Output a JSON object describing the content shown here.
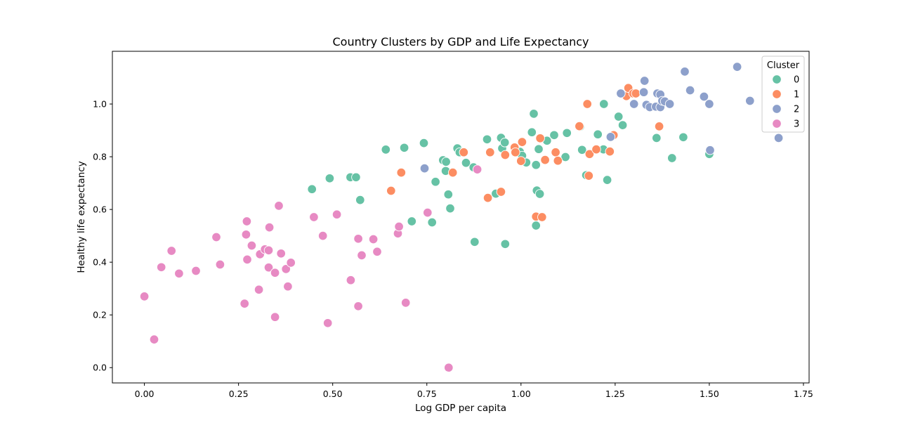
{
  "chart_data": {
    "type": "scatter",
    "title": "Country Clusters by GDP and Life Expectancy",
    "xlabel": "Log GDP per capita",
    "ylabel": "Healthy life expectancy",
    "xlim": [
      -0.085,
      1.765
    ],
    "ylim": [
      -0.058,
      1.2
    ],
    "xticks": [
      "0.00",
      "0.25",
      "0.50",
      "0.75",
      "1.00",
      "1.25",
      "1.50",
      "1.75"
    ],
    "yticks": [
      "0.0",
      "0.2",
      "0.4",
      "0.6",
      "0.8",
      "1.0"
    ],
    "grid": false,
    "legend": {
      "title": "Cluster",
      "placement": "top-right"
    },
    "series": [
      {
        "name": "0",
        "color": "#66c2a5",
        "points": [
          [
            0.445,
            0.677
          ],
          [
            0.492,
            0.718
          ],
          [
            0.547,
            0.722
          ],
          [
            0.562,
            0.722
          ],
          [
            0.573,
            0.636
          ],
          [
            0.641,
            0.827
          ],
          [
            0.69,
            0.834
          ],
          [
            0.71,
            0.555
          ],
          [
            0.742,
            0.852
          ],
          [
            0.764,
            0.551
          ],
          [
            0.773,
            0.705
          ],
          [
            0.793,
            0.787
          ],
          [
            0.8,
            0.746
          ],
          [
            0.801,
            0.781
          ],
          [
            0.807,
            0.657
          ],
          [
            0.812,
            0.604
          ],
          [
            0.831,
            0.832
          ],
          [
            0.837,
            0.817
          ],
          [
            0.854,
            0.777
          ],
          [
            0.874,
            0.76
          ],
          [
            0.877,
            0.477
          ],
          [
            0.91,
            0.866
          ],
          [
            0.933,
            0.66
          ],
          [
            0.947,
            0.872
          ],
          [
            0.95,
            0.832
          ],
          [
            0.957,
            0.854
          ],
          [
            0.958,
            0.469
          ],
          [
            0.997,
            0.819
          ],
          [
            1.003,
            0.804
          ],
          [
            1.014,
            0.778
          ],
          [
            1.029,
            0.893
          ],
          [
            1.034,
            0.963
          ],
          [
            1.04,
            0.769
          ],
          [
            1.042,
            0.672
          ],
          [
            1.04,
            0.539
          ],
          [
            1.047,
            0.829
          ],
          [
            1.05,
            0.659
          ],
          [
            1.069,
            0.861
          ],
          [
            1.088,
            0.882
          ],
          [
            1.118,
            0.799
          ],
          [
            1.122,
            0.89
          ],
          [
            1.157,
            0.914
          ],
          [
            1.162,
            0.826
          ],
          [
            1.173,
            0.73
          ],
          [
            1.204,
            0.885
          ],
          [
            1.219,
            0.828
          ],
          [
            1.22,
            1.0
          ],
          [
            1.229,
            0.712
          ],
          [
            1.259,
            0.952
          ],
          [
            1.27,
            0.92
          ],
          [
            1.36,
            0.871
          ],
          [
            1.401,
            0.795
          ],
          [
            1.431,
            0.874
          ],
          [
            1.5,
            0.81
          ]
        ]
      },
      {
        "name": "1",
        "color": "#fc8d62",
        "points": [
          [
            0.655,
            0.671
          ],
          [
            0.682,
            0.74
          ],
          [
            0.819,
            0.74
          ],
          [
            0.848,
            0.817
          ],
          [
            0.912,
            0.644
          ],
          [
            0.918,
            0.817
          ],
          [
            0.947,
            0.667
          ],
          [
            0.958,
            0.807
          ],
          [
            0.983,
            0.835
          ],
          [
            0.985,
            0.817
          ],
          [
            1.0,
            0.784
          ],
          [
            1.003,
            0.856
          ],
          [
            1.04,
            0.573
          ],
          [
            1.051,
            0.87
          ],
          [
            1.056,
            0.571
          ],
          [
            1.064,
            0.788
          ],
          [
            1.092,
            0.817
          ],
          [
            1.098,
            0.785
          ],
          [
            1.155,
            0.916
          ],
          [
            1.176,
            1.0
          ],
          [
            1.18,
            0.728
          ],
          [
            1.182,
            0.81
          ],
          [
            1.2,
            0.828
          ],
          [
            1.236,
            0.82
          ],
          [
            1.246,
            0.882
          ],
          [
            1.28,
            1.03
          ],
          [
            1.285,
            1.061
          ],
          [
            1.298,
            1.04
          ],
          [
            1.305,
            1.04
          ],
          [
            1.367,
            0.915
          ]
        ]
      },
      {
        "name": "2",
        "color": "#8da0cb",
        "points": [
          [
            0.744,
            0.756
          ],
          [
            1.238,
            0.875
          ],
          [
            1.265,
            1.04
          ],
          [
            1.3,
            1.0
          ],
          [
            1.326,
            1.045
          ],
          [
            1.328,
            1.088
          ],
          [
            1.333,
            0.997
          ],
          [
            1.342,
            0.988
          ],
          [
            1.358,
            0.99
          ],
          [
            1.362,
            1.04
          ],
          [
            1.37,
            1.036
          ],
          [
            1.37,
            0.988
          ],
          [
            1.375,
            1.012
          ],
          [
            1.382,
            1.01
          ],
          [
            1.395,
            1.0
          ],
          [
            1.435,
            1.123
          ],
          [
            1.449,
            1.052
          ],
          [
            1.486,
            1.028
          ],
          [
            1.5,
            1.0
          ],
          [
            1.502,
            0.825
          ],
          [
            1.574,
            1.141
          ],
          [
            1.608,
            1.012
          ],
          [
            1.684,
            0.871
          ]
        ]
      },
      {
        "name": "3",
        "color": "#e78ac3",
        "points": [
          [
            0.0,
            0.27
          ],
          [
            0.026,
            0.107
          ],
          [
            0.045,
            0.381
          ],
          [
            0.072,
            0.443
          ],
          [
            0.092,
            0.357
          ],
          [
            0.137,
            0.367
          ],
          [
            0.191,
            0.495
          ],
          [
            0.201,
            0.391
          ],
          [
            0.266,
            0.243
          ],
          [
            0.27,
            0.505
          ],
          [
            0.272,
            0.555
          ],
          [
            0.273,
            0.41
          ],
          [
            0.285,
            0.463
          ],
          [
            0.304,
            0.296
          ],
          [
            0.307,
            0.43
          ],
          [
            0.32,
            0.449
          ],
          [
            0.33,
            0.445
          ],
          [
            0.33,
            0.38
          ],
          [
            0.332,
            0.532
          ],
          [
            0.347,
            0.36
          ],
          [
            0.347,
            0.192
          ],
          [
            0.357,
            0.614
          ],
          [
            0.363,
            0.433
          ],
          [
            0.376,
            0.374
          ],
          [
            0.381,
            0.308
          ],
          [
            0.389,
            0.398
          ],
          [
            0.45,
            0.571
          ],
          [
            0.474,
            0.5
          ],
          [
            0.487,
            0.169
          ],
          [
            0.511,
            0.581
          ],
          [
            0.548,
            0.332
          ],
          [
            0.568,
            0.489
          ],
          [
            0.568,
            0.233
          ],
          [
            0.577,
            0.426
          ],
          [
            0.608,
            0.487
          ],
          [
            0.618,
            0.44
          ],
          [
            0.673,
            0.509
          ],
          [
            0.676,
            0.535
          ],
          [
            0.694,
            0.246
          ],
          [
            0.752,
            0.588
          ],
          [
            0.808,
            0.0
          ],
          [
            0.884,
            0.752
          ]
        ]
      }
    ]
  }
}
